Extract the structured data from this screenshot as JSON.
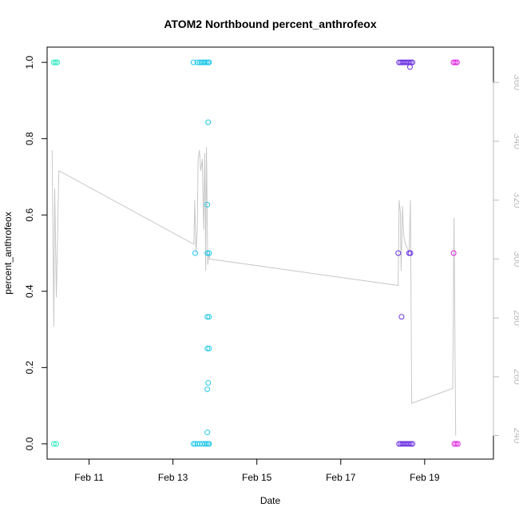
{
  "chart_data": {
    "type": "scatter",
    "title": "ATOM2 Northbound percent_anthrofeox",
    "xlabel": "Date",
    "ylabel": "percent_anthrofeox",
    "xlim": [
      10.0,
      20.64
    ],
    "ylim": [
      -0.04,
      1.04
    ],
    "y_ticks": [
      "0.0",
      "0.2",
      "0.4",
      "0.6",
      "0.8",
      "1.0"
    ],
    "y_tick_values": [
      0.0,
      0.2,
      0.4,
      0.6,
      0.8,
      1.0
    ],
    "x_ticks": [
      "Feb 11",
      "Feb 13",
      "Feb 15",
      "Feb 17",
      "Feb 19"
    ],
    "x_tick_values": [
      11,
      13,
      15,
      17,
      19
    ],
    "secondary_y": {
      "lim": [
        232,
        372
      ],
      "ticks": [
        "240",
        "260",
        "280",
        "300",
        "320",
        "340",
        "360"
      ],
      "tick_values": [
        240,
        260,
        280,
        300,
        320,
        340,
        360
      ],
      "color": "#bdbdbd"
    },
    "grid": false,
    "series": [
      {
        "name": "percent_anthrofeox",
        "points": [
          {
            "x": 10.16,
            "y": 1.0,
            "color": "#2ee8c0"
          },
          {
            "x": 10.2,
            "y": 1.0,
            "color": "#2ee8c0"
          },
          {
            "x": 10.24,
            "y": 1.0,
            "color": "#2ee8c0"
          },
          {
            "x": 10.16,
            "y": 0.0,
            "color": "#2ee8c0"
          },
          {
            "x": 10.22,
            "y": 0.0,
            "color": "#2ee8c0"
          },
          {
            "x": 13.49,
            "y": 1.0,
            "color": "#20c8e8"
          },
          {
            "x": 13.58,
            "y": 1.0,
            "color": "#20c8e8"
          },
          {
            "x": 13.64,
            "y": 1.0,
            "color": "#20c8e8"
          },
          {
            "x": 13.68,
            "y": 1.0,
            "color": "#20c8e8"
          },
          {
            "x": 13.72,
            "y": 1.0,
            "color": "#20c8e8"
          },
          {
            "x": 13.76,
            "y": 1.0,
            "color": "#20c8e8"
          },
          {
            "x": 13.8,
            "y": 1.0,
            "color": "#20c8e8"
          },
          {
            "x": 13.84,
            "y": 1.0,
            "color": "#20c8e8"
          },
          {
            "x": 13.86,
            "y": 1.0,
            "color": "#20c8e8"
          },
          {
            "x": 13.84,
            "y": 0.843,
            "color": "#20c8e8"
          },
          {
            "x": 13.82,
            "y": 0.627,
            "color": "#20c8e8"
          },
          {
            "x": 13.53,
            "y": 0.5,
            "color": "#20c8e8"
          },
          {
            "x": 13.82,
            "y": 0.5,
            "color": "#20c8e8"
          },
          {
            "x": 13.86,
            "y": 0.5,
            "color": "#20c8e8"
          },
          {
            "x": 13.82,
            "y": 0.333,
            "color": "#20c8e8"
          },
          {
            "x": 13.86,
            "y": 0.333,
            "color": "#20c8e8"
          },
          {
            "x": 13.82,
            "y": 0.25,
            "color": "#20c8e8"
          },
          {
            "x": 13.86,
            "y": 0.25,
            "color": "#20c8e8"
          },
          {
            "x": 13.84,
            "y": 0.16,
            "color": "#20c8e8"
          },
          {
            "x": 13.82,
            "y": 0.143,
            "color": "#20c8e8"
          },
          {
            "x": 13.82,
            "y": 0.03,
            "color": "#20c8e8"
          },
          {
            "x": 13.49,
            "y": 0.0,
            "color": "#20c8e8"
          },
          {
            "x": 13.53,
            "y": 0.0,
            "color": "#20c8e8"
          },
          {
            "x": 13.58,
            "y": 0.0,
            "color": "#20c8e8"
          },
          {
            "x": 13.64,
            "y": 0.0,
            "color": "#20c8e8"
          },
          {
            "x": 13.7,
            "y": 0.0,
            "color": "#20c8e8"
          },
          {
            "x": 13.76,
            "y": 0.0,
            "color": "#20c8e8"
          },
          {
            "x": 13.8,
            "y": 0.0,
            "color": "#20c8e8"
          },
          {
            "x": 13.84,
            "y": 0.0,
            "color": "#20c8e8"
          },
          {
            "x": 13.86,
            "y": 0.0,
            "color": "#20c8e8"
          },
          {
            "x": 18.39,
            "y": 1.0,
            "color": "#6a2fe0"
          },
          {
            "x": 18.43,
            "y": 1.0,
            "color": "#6a2fe0"
          },
          {
            "x": 18.47,
            "y": 1.0,
            "color": "#6a2fe0"
          },
          {
            "x": 18.51,
            "y": 1.0,
            "color": "#6a2fe0"
          },
          {
            "x": 18.55,
            "y": 1.0,
            "color": "#6a2fe0"
          },
          {
            "x": 18.59,
            "y": 1.0,
            "color": "#6a2fe0"
          },
          {
            "x": 18.63,
            "y": 1.0,
            "color": "#6a2fe0"
          },
          {
            "x": 18.67,
            "y": 1.0,
            "color": "#6a2fe0"
          },
          {
            "x": 18.71,
            "y": 1.0,
            "color": "#6a2fe0"
          },
          {
            "x": 18.65,
            "y": 0.988,
            "color": "#6a2fe0"
          },
          {
            "x": 18.37,
            "y": 0.5,
            "color": "#6a2fe0"
          },
          {
            "x": 18.63,
            "y": 0.5,
            "color": "#6a2fe0"
          },
          {
            "x": 18.66,
            "y": 0.5,
            "color": "#6a2fe0"
          },
          {
            "x": 18.45,
            "y": 0.333,
            "color": "#6a2fe0"
          },
          {
            "x": 18.39,
            "y": 0.0,
            "color": "#6a2fe0"
          },
          {
            "x": 18.43,
            "y": 0.0,
            "color": "#6a2fe0"
          },
          {
            "x": 18.47,
            "y": 0.0,
            "color": "#6a2fe0"
          },
          {
            "x": 18.51,
            "y": 0.0,
            "color": "#6a2fe0"
          },
          {
            "x": 18.55,
            "y": 0.0,
            "color": "#6a2fe0"
          },
          {
            "x": 18.59,
            "y": 0.0,
            "color": "#6a2fe0"
          },
          {
            "x": 18.63,
            "y": 0.0,
            "color": "#6a2fe0"
          },
          {
            "x": 18.67,
            "y": 0.0,
            "color": "#6a2fe0"
          },
          {
            "x": 18.71,
            "y": 0.0,
            "color": "#6a2fe0"
          },
          {
            "x": 19.69,
            "y": 1.0,
            "color": "#e020e0"
          },
          {
            "x": 19.73,
            "y": 1.0,
            "color": "#e020e0"
          },
          {
            "x": 19.77,
            "y": 1.0,
            "color": "#e020e0"
          },
          {
            "x": 19.69,
            "y": 0.5,
            "color": "#e020e0"
          },
          {
            "x": 19.71,
            "y": 0.0,
            "color": "#e020e0"
          },
          {
            "x": 19.75,
            "y": 0.0,
            "color": "#e020e0"
          },
          {
            "x": 19.79,
            "y": 0.0,
            "color": "#e020e0"
          }
        ]
      },
      {
        "name": "secondary-line",
        "axis": "right",
        "color": "#c8c8c8",
        "points": [
          [
            10.12,
            337
          ],
          [
            10.16,
            277
          ],
          [
            10.18,
            324
          ],
          [
            10.22,
            287
          ],
          [
            10.28,
            330
          ],
          [
            13.5,
            305
          ],
          [
            13.52,
            320
          ],
          [
            13.55,
            302
          ],
          [
            13.58,
            310
          ],
          [
            13.6,
            334
          ],
          [
            13.63,
            337
          ],
          [
            13.66,
            330
          ],
          [
            13.7,
            334
          ],
          [
            13.73,
            310
          ],
          [
            13.76,
            336
          ],
          [
            13.78,
            296
          ],
          [
            13.8,
            338
          ],
          [
            13.83,
            298
          ],
          [
            13.86,
            302
          ],
          [
            13.88,
            300
          ],
          [
            18.37,
            291
          ],
          [
            18.39,
            320
          ],
          [
            18.42,
            316
          ],
          [
            18.44,
            296
          ],
          [
            18.47,
            318
          ],
          [
            18.5,
            308
          ],
          [
            18.54,
            305
          ],
          [
            18.58,
            304
          ],
          [
            18.63,
            302
          ],
          [
            18.66,
            320
          ],
          [
            18.69,
            251
          ],
          [
            19.67,
            256
          ],
          [
            19.7,
            314
          ],
          [
            19.74,
            240
          ]
        ]
      }
    ]
  }
}
